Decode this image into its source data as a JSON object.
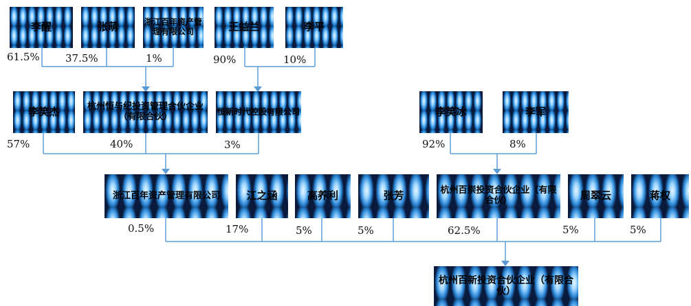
{
  "row1": {
    "li_xing": "李醒",
    "zhang_meng": "张萌",
    "zhejiang_baicheng_small": "浙江百年资产管理有限公司",
    "wang_yilan": "王益兰",
    "li_ping": "李平"
  },
  "row1_pcts": {
    "li_xing": "61.5%",
    "zhang_meng": "37.5%",
    "zhejiang": "1%",
    "wang_yilan": "90%",
    "li_ping": "10%"
  },
  "row2": {
    "li_xiaojie": "李笑杰",
    "hangzhou_hengyu": "杭州恒与纪投资管理合伙企业（有限合伙）",
    "hengxin_shidai": "恒新时代控股有限公司",
    "li_xiaobing": "李笑冰",
    "li_jun": "李军"
  },
  "row2_pcts": {
    "li_xiaojie": "57%",
    "hangzhou_hengyu": "40%",
    "hengxin": "3%",
    "li_xiaobing": "92%",
    "li_jun": "8%"
  },
  "row3": {
    "zhejiang_baicheng": "浙江百年资产管理有限公司",
    "jiang_zhihan": "江之涵",
    "gao_yangli": "高养利",
    "zhang_fang": "张芳",
    "hangzhou_baichong": "杭州百崇投资合伙企业（有限合伙）",
    "zhou_cuiyun": "周翠云",
    "jiang_quan": "蒋权"
  },
  "row3_pcts": {
    "zhejiang_baicheng": "0.5%",
    "jiang_zhihan": "17%",
    "gao_yangli": "5%",
    "zhang_fang": "5%",
    "hangzhou_baichong": "62.5%",
    "zhou_cuiyun": "5%",
    "jiang_quan": "5%"
  },
  "target": {
    "name": "杭州百新投资合伙企业（有限合伙）"
  }
}
